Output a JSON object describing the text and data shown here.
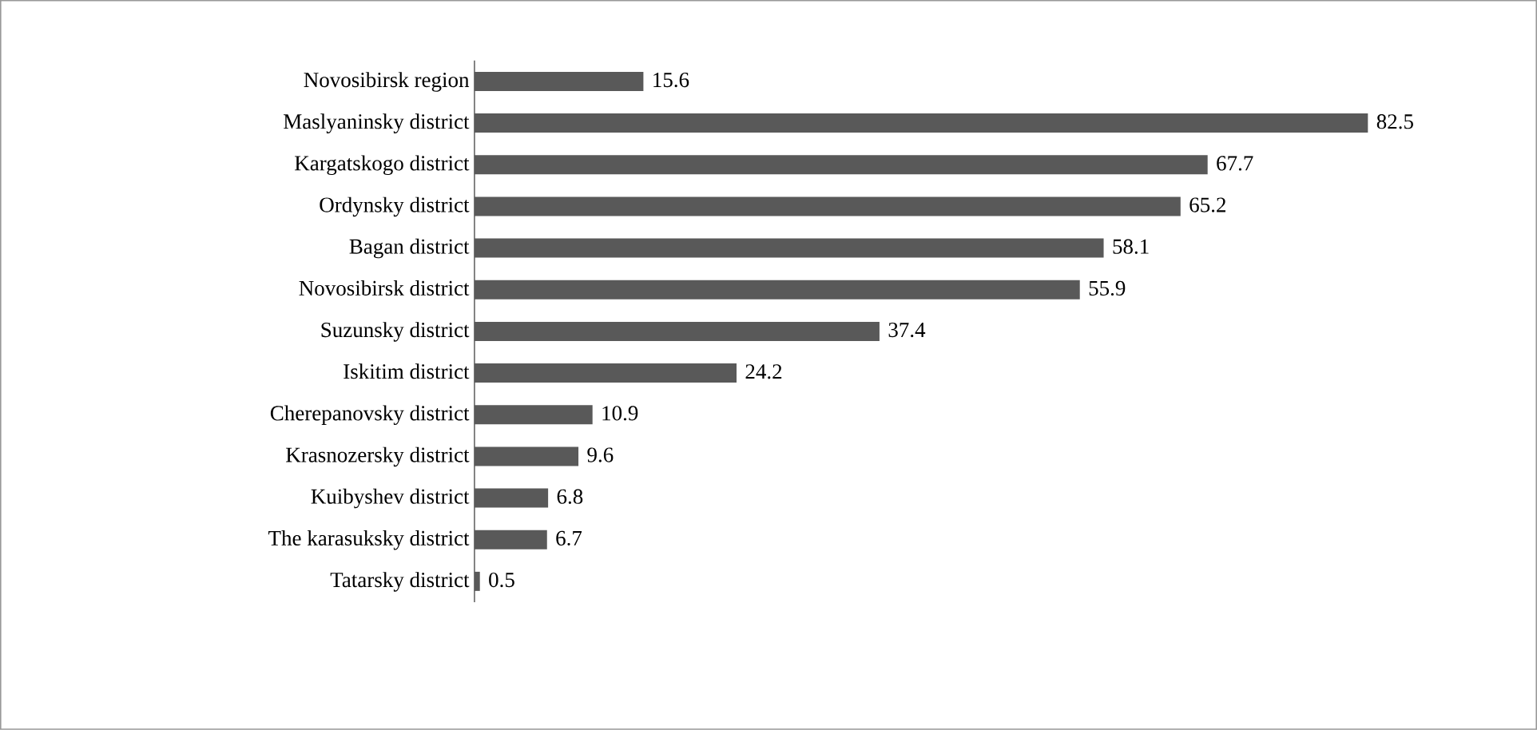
{
  "chart_data": {
    "type": "bar",
    "orientation": "horizontal",
    "data_labels": true,
    "color": "#595959",
    "categories": [
      "Novosibirsk region",
      "Maslyaninsky district",
      "Kargatskogo district",
      "Ordynsky district",
      "Bagan district",
      "Novosibirsk district",
      "Suzunsky district",
      "Iskitim district",
      "Cherepanovsky district",
      "Krasnozersky district",
      "Kuibyshev district",
      "The karasuksky district",
      "Tatarsky district"
    ],
    "values": [
      15.6,
      82.5,
      67.7,
      65.2,
      58.1,
      55.9,
      37.4,
      24.2,
      10.9,
      9.6,
      6.8,
      6.7,
      0.5
    ]
  }
}
